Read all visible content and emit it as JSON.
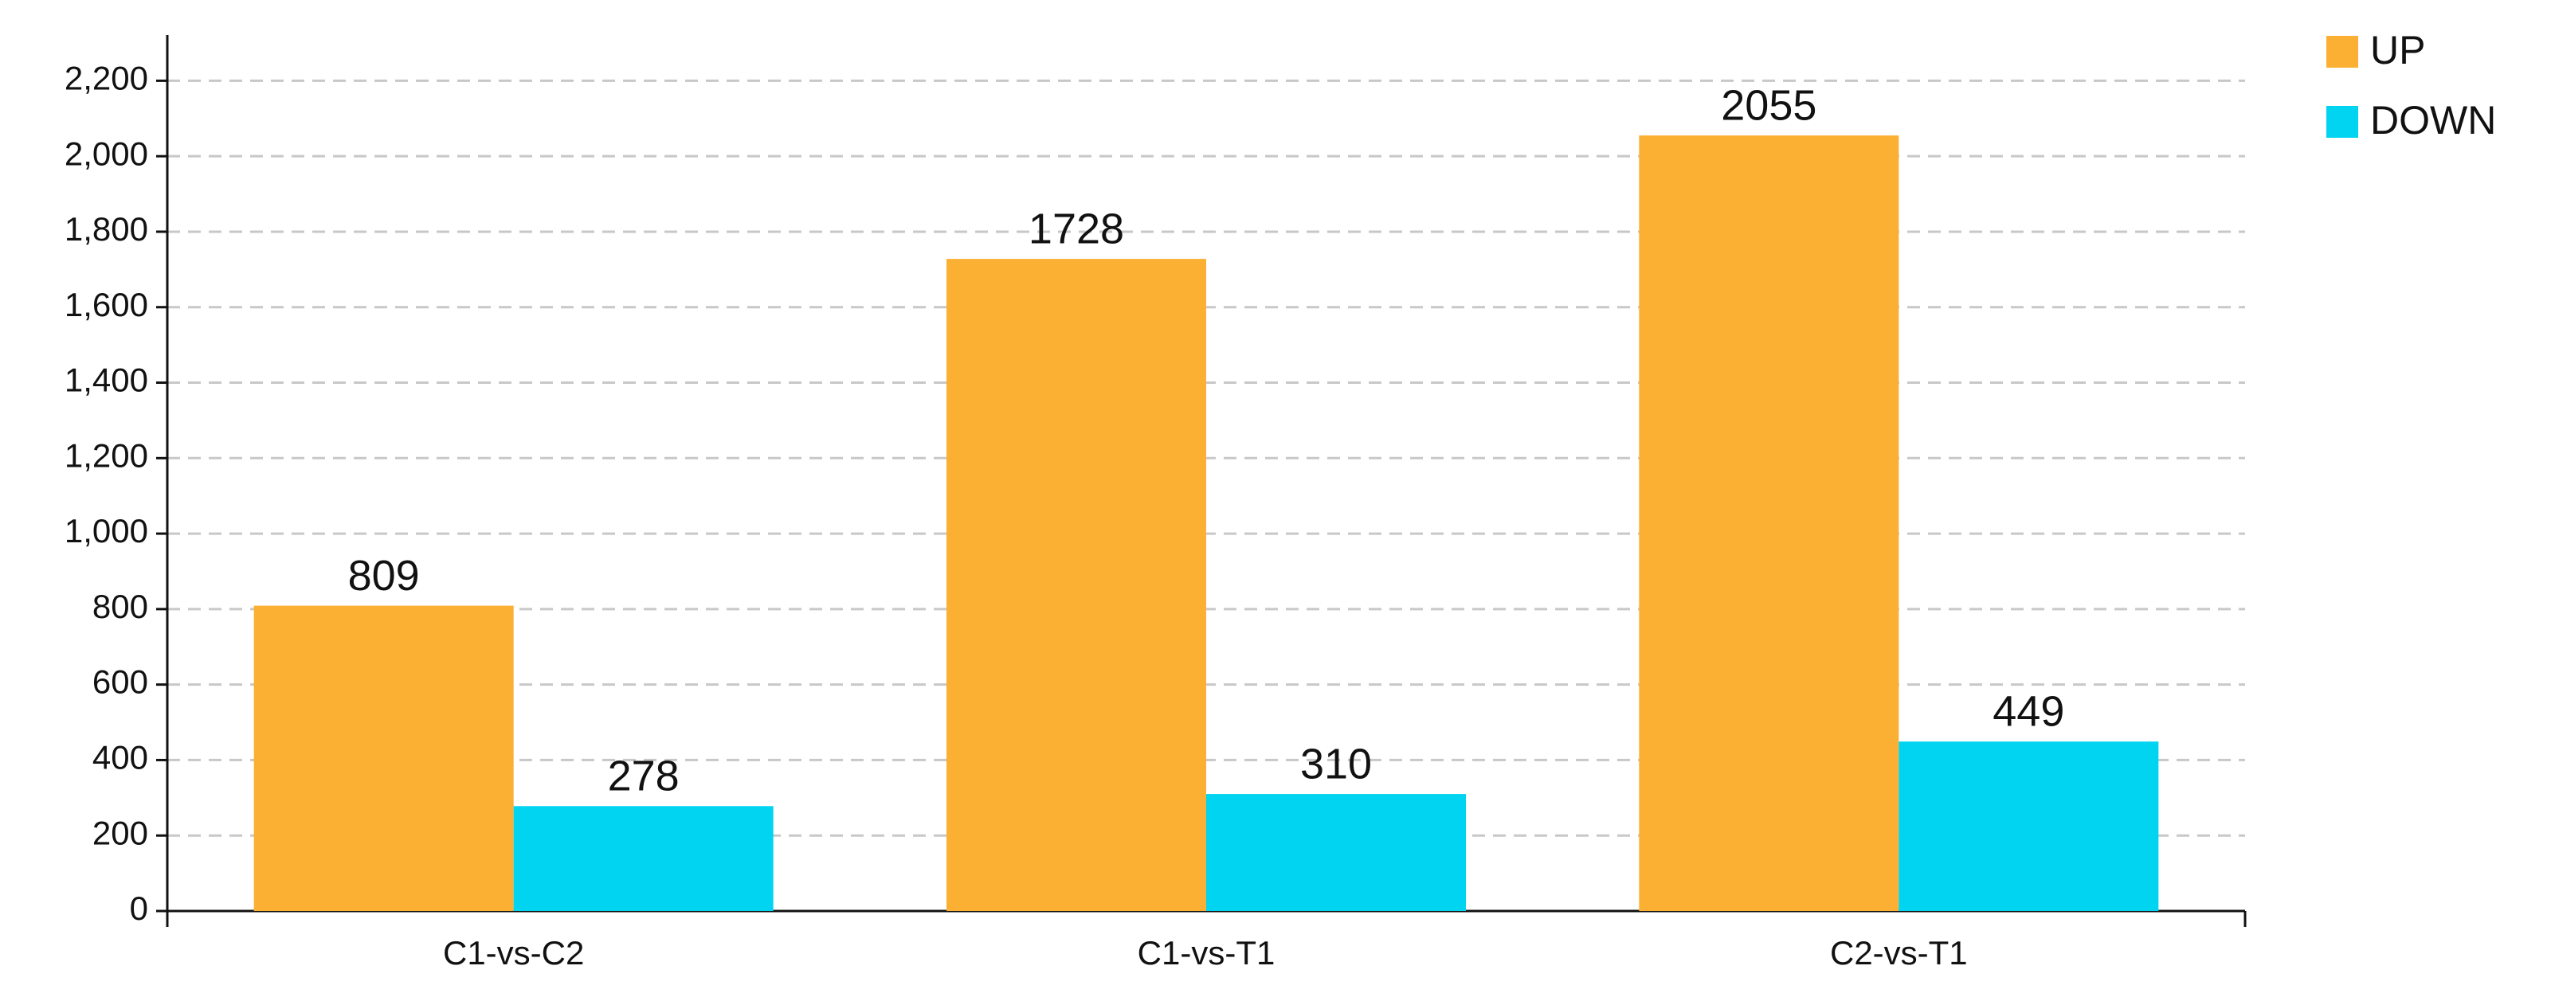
{
  "chart_data": {
    "type": "bar",
    "categories": [
      "C1-vs-C2",
      "C1-vs-T1",
      "C2-vs-T1"
    ],
    "series": [
      {
        "name": "UP",
        "color": "#fbb034",
        "values": [
          809,
          1728,
          2055
        ]
      },
      {
        "name": "DOWN",
        "color": "#00d4f0",
        "values": [
          278,
          310,
          449
        ]
      }
    ],
    "ylim": [
      0,
      2300
    ],
    "yticks": [
      0,
      200,
      400,
      600,
      800,
      {
        "value": 1000,
        "label": "1,000"
      },
      {
        "value": 1200,
        "label": "1,200"
      },
      {
        "value": 1400,
        "label": "1,400"
      },
      {
        "value": 1600,
        "label": "1,600"
      },
      {
        "value": 1800,
        "label": "1,800"
      },
      {
        "value": 2000,
        "label": "2,000"
      },
      {
        "value": 2200,
        "label": "2,200"
      }
    ],
    "grid": true,
    "legend": "top-right"
  }
}
